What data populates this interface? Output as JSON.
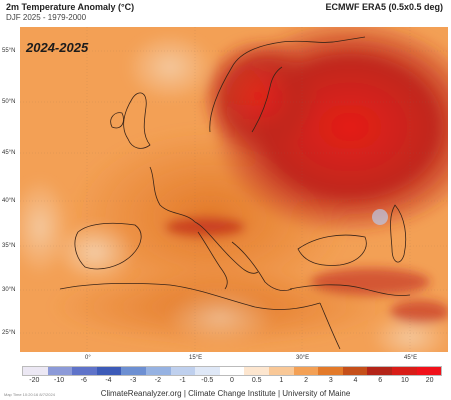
{
  "header": {
    "title": "2m Temperature Anomaly (°C)",
    "subtitle": "DJF 2025 - 1979-2000",
    "source": "ECMWF ERA5 (0.5x0.5 deg)"
  },
  "map": {
    "overlay_label": "2024-2025",
    "lat_labels": [
      "55°N",
      "50°N",
      "45°N",
      "40°N",
      "35°N",
      "30°N",
      "25°N"
    ],
    "lon_labels": [
      "0°",
      "15°E",
      "30°E",
      "45°E"
    ],
    "colors": {
      "sea_base": "#f3a055",
      "land_base": "#e37a2a",
      "warm_east": "#c0281c",
      "hot_core": "#e51d18",
      "cool_spot": "#f6e2cd",
      "cold_spot": "#b9c8e8"
    }
  },
  "colorbar": {
    "labels": [
      "-20",
      "-10",
      "-6",
      "-4",
      "-3",
      "-2",
      "-1",
      "-0.5",
      "0",
      "0.5",
      "1",
      "2",
      "3",
      "4",
      "6",
      "10",
      "20"
    ],
    "colors": [
      "#ece8f4",
      "#8c9ad8",
      "#5f73c9",
      "#3d5bb8",
      "#6d8fd2",
      "#96b2e2",
      "#bfd0ee",
      "#dfe8f7",
      "#ffffff",
      "#fde6cf",
      "#f9c897",
      "#f3a055",
      "#e37a2a",
      "#c54f1a",
      "#b32418",
      "#d81d18",
      "#f0111a"
    ]
  },
  "footer": {
    "credits": "ClimateReanalyzer.org | Climate Change Institute | University of Maine",
    "timestamp": "Map Time 10:20:16 8/7/2024"
  }
}
